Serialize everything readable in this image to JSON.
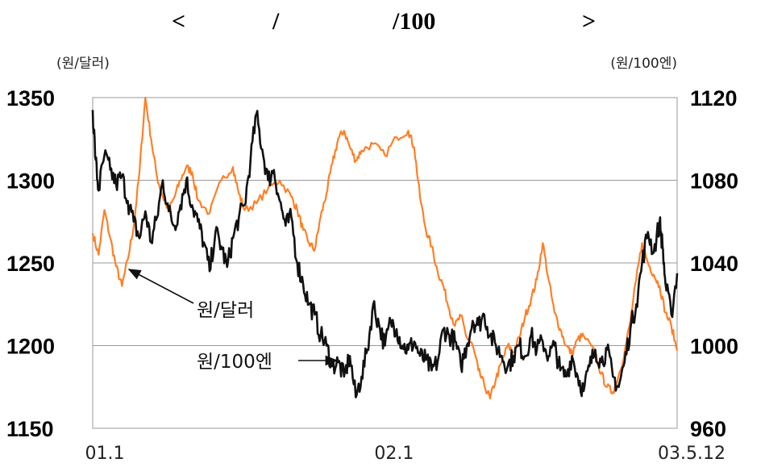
{
  "title": {
    "left_bracket": "<",
    "slash1": "/",
    "slash2": "/100",
    "right_bracket": ">"
  },
  "chart_data": {
    "type": "line",
    "left_axis_unit": "(원/달러)",
    "right_axis_unit": "(원/100엔)",
    "left_ylim": [
      1150,
      1350
    ],
    "left_ticks": [
      "1350",
      "1300",
      "1250",
      "1200",
      "1150"
    ],
    "right_ylim": [
      960,
      1120
    ],
    "right_ticks": [
      "1120",
      "1080",
      "1040",
      "1000",
      "960"
    ],
    "x_ticks": [
      {
        "label": "01.1",
        "t": 0.0
      },
      {
        "label": "02.1",
        "t": 0.495
      },
      {
        "label": "03.5.12",
        "t": 1.0
      }
    ],
    "grid": true,
    "series": [
      {
        "name": "원/달러",
        "axis": "left",
        "color": "#ff7f27",
        "points": [
          [
            0.0,
            1268
          ],
          [
            0.01,
            1255
          ],
          [
            0.02,
            1282
          ],
          [
            0.03,
            1265
          ],
          [
            0.04,
            1248
          ],
          [
            0.05,
            1236
          ],
          [
            0.06,
            1252
          ],
          [
            0.07,
            1272
          ],
          [
            0.08,
            1305
          ],
          [
            0.09,
            1350
          ],
          [
            0.1,
            1325
          ],
          [
            0.11,
            1302
          ],
          [
            0.12,
            1290
          ],
          [
            0.13,
            1282
          ],
          [
            0.14,
            1290
          ],
          [
            0.15,
            1300
          ],
          [
            0.16,
            1308
          ],
          [
            0.17,
            1305
          ],
          [
            0.18,
            1288
          ],
          [
            0.2,
            1280
          ],
          [
            0.22,
            1300
          ],
          [
            0.24,
            1308
          ],
          [
            0.25,
            1292
          ],
          [
            0.26,
            1282
          ],
          [
            0.28,
            1286
          ],
          [
            0.3,
            1295
          ],
          [
            0.32,
            1300
          ],
          [
            0.34,
            1290
          ],
          [
            0.35,
            1282
          ],
          [
            0.36,
            1270
          ],
          [
            0.37,
            1262
          ],
          [
            0.38,
            1258
          ],
          [
            0.39,
            1278
          ],
          [
            0.4,
            1292
          ],
          [
            0.41,
            1310
          ],
          [
            0.42,
            1325
          ],
          [
            0.43,
            1330
          ],
          [
            0.44,
            1320
          ],
          [
            0.45,
            1312
          ],
          [
            0.46,
            1318
          ],
          [
            0.48,
            1322
          ],
          [
            0.5,
            1315
          ],
          [
            0.52,
            1326
          ],
          [
            0.54,
            1330
          ],
          [
            0.55,
            1320
          ],
          [
            0.56,
            1290
          ],
          [
            0.57,
            1270
          ],
          [
            0.58,
            1260
          ],
          [
            0.59,
            1245
          ],
          [
            0.6,
            1236
          ],
          [
            0.61,
            1222
          ],
          [
            0.62,
            1212
          ],
          [
            0.63,
            1218
          ],
          [
            0.64,
            1205
          ],
          [
            0.65,
            1200
          ],
          [
            0.66,
            1185
          ],
          [
            0.67,
            1176
          ],
          [
            0.68,
            1168
          ],
          [
            0.69,
            1180
          ],
          [
            0.7,
            1190
          ],
          [
            0.71,
            1200
          ],
          [
            0.72,
            1196
          ],
          [
            0.73,
            1205
          ],
          [
            0.74,
            1218
          ],
          [
            0.75,
            1228
          ],
          [
            0.76,
            1240
          ],
          [
            0.77,
            1262
          ],
          [
            0.78,
            1240
          ],
          [
            0.79,
            1220
          ],
          [
            0.8,
            1210
          ],
          [
            0.81,
            1200
          ],
          [
            0.82,
            1195
          ],
          [
            0.83,
            1204
          ],
          [
            0.84,
            1206
          ],
          [
            0.86,
            1195
          ],
          [
            0.87,
            1183
          ],
          [
            0.88,
            1175
          ],
          [
            0.89,
            1172
          ],
          [
            0.9,
            1182
          ],
          [
            0.91,
            1196
          ],
          [
            0.92,
            1215
          ],
          [
            0.93,
            1240
          ],
          [
            0.94,
            1262
          ],
          [
            0.95,
            1250
          ],
          [
            0.96,
            1243
          ],
          [
            0.97,
            1236
          ],
          [
            0.98,
            1220
          ],
          [
            0.99,
            1212
          ],
          [
            1.0,
            1197
          ]
        ]
      },
      {
        "name": "원/100엔",
        "axis": "right",
        "color": "#111111",
        "points": [
          [
            0.0,
            1114
          ],
          [
            0.005,
            1090
          ],
          [
            0.01,
            1075
          ],
          [
            0.02,
            1092
          ],
          [
            0.03,
            1085
          ],
          [
            0.04,
            1078
          ],
          [
            0.05,
            1082
          ],
          [
            0.06,
            1070
          ],
          [
            0.07,
            1060
          ],
          [
            0.08,
            1052
          ],
          [
            0.09,
            1065
          ],
          [
            0.1,
            1050
          ],
          [
            0.11,
            1062
          ],
          [
            0.12,
            1080
          ],
          [
            0.13,
            1065
          ],
          [
            0.14,
            1058
          ],
          [
            0.15,
            1068
          ],
          [
            0.16,
            1080
          ],
          [
            0.17,
            1068
          ],
          [
            0.18,
            1060
          ],
          [
            0.19,
            1050
          ],
          [
            0.2,
            1036
          ],
          [
            0.21,
            1055
          ],
          [
            0.22,
            1048
          ],
          [
            0.23,
            1038
          ],
          [
            0.24,
            1052
          ],
          [
            0.25,
            1062
          ],
          [
            0.26,
            1068
          ],
          [
            0.27,
            1090
          ],
          [
            0.28,
            1112
          ],
          [
            0.29,
            1095
          ],
          [
            0.3,
            1080
          ],
          [
            0.31,
            1085
          ],
          [
            0.32,
            1070
          ],
          [
            0.33,
            1058
          ],
          [
            0.34,
            1062
          ],
          [
            0.35,
            1040
          ],
          [
            0.36,
            1030
          ],
          [
            0.37,
            1020
          ],
          [
            0.38,
            1015
          ],
          [
            0.39,
            1005
          ],
          [
            0.4,
            1000
          ],
          [
            0.41,
            990
          ],
          [
            0.42,
            992
          ],
          [
            0.43,
            985
          ],
          [
            0.44,
            995
          ],
          [
            0.45,
            975
          ],
          [
            0.46,
            985
          ],
          [
            0.47,
            998
          ],
          [
            0.48,
            1020
          ],
          [
            0.49,
            1010
          ],
          [
            0.5,
            1000
          ],
          [
            0.51,
            1012
          ],
          [
            0.52,
            1008
          ],
          [
            0.53,
            1000
          ],
          [
            0.54,
            998
          ],
          [
            0.55,
            1002
          ],
          [
            0.56,
            995
          ],
          [
            0.57,
            993
          ],
          [
            0.58,
            988
          ],
          [
            0.59,
            992
          ],
          [
            0.6,
            1008
          ],
          [
            0.61,
            1005
          ],
          [
            0.62,
            1002
          ],
          [
            0.63,
            990
          ],
          [
            0.64,
            1000
          ],
          [
            0.65,
            1012
          ],
          [
            0.66,
            1010
          ],
          [
            0.67,
            1015
          ],
          [
            0.68,
            1005
          ],
          [
            0.69,
            1000
          ],
          [
            0.7,
            995
          ],
          [
            0.71,
            990
          ],
          [
            0.72,
            995
          ],
          [
            0.73,
            1000
          ],
          [
            0.74,
            995
          ],
          [
            0.75,
            1005
          ],
          [
            0.76,
            998
          ],
          [
            0.77,
            1002
          ],
          [
            0.78,
            995
          ],
          [
            0.79,
            1000
          ],
          [
            0.8,
            988
          ],
          [
            0.81,
            985
          ],
          [
            0.82,
            995
          ],
          [
            0.83,
            985
          ],
          [
            0.84,
            978
          ],
          [
            0.85,
            990
          ],
          [
            0.86,
            998
          ],
          [
            0.87,
            992
          ],
          [
            0.88,
            998
          ],
          [
            0.89,
            985
          ],
          [
            0.9,
            980
          ],
          [
            0.91,
            992
          ],
          [
            0.92,
            1008
          ],
          [
            0.93,
            1020
          ],
          [
            0.94,
            1040
          ],
          [
            0.95,
            1055
          ],
          [
            0.96,
            1045
          ],
          [
            0.97,
            1060
          ],
          [
            0.975,
            1048
          ],
          [
            0.98,
            1030
          ],
          [
            0.99,
            1015
          ],
          [
            1.0,
            1035
          ]
        ]
      }
    ],
    "annotations": [
      {
        "text": "원/달러",
        "series": "원/달러"
      },
      {
        "text": "원/100엔",
        "series": "원/100엔"
      }
    ]
  }
}
